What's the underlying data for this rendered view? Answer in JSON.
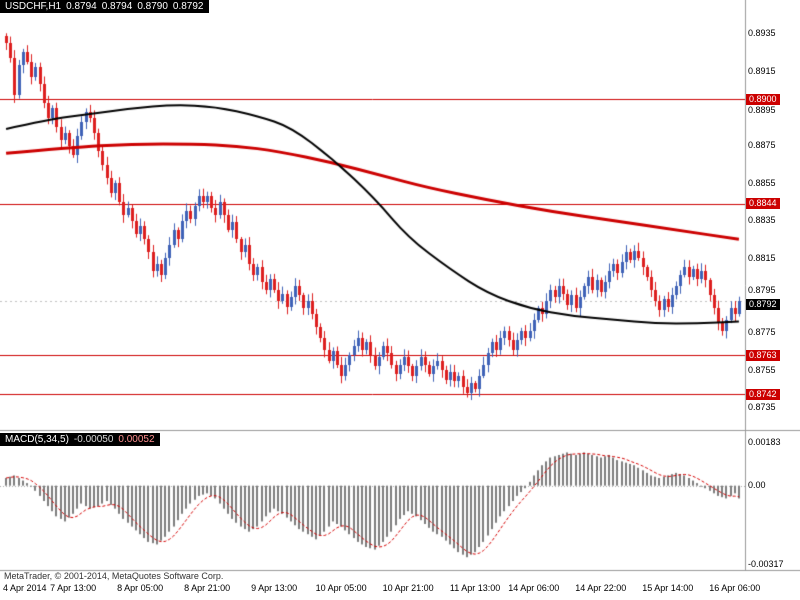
{
  "header": {
    "symbol": "USDCHF,H1",
    "open": "0.8794",
    "high": "0.8794",
    "low": "0.8790",
    "close": "0.8792"
  },
  "macd_header": {
    "name": "MACD(5,34,5)",
    "value": "-0.00050",
    "signal": "0.00052"
  },
  "footer": {
    "copyright": "MetaTrader, © 2001-2014, MetaQuotes Software Corp."
  },
  "chart_data": [
    {
      "type": "candlestick",
      "title": "USDCHF,H1",
      "ylim": [
        0.8723,
        0.8953
      ],
      "grid": false,
      "closes": [
        0.893,
        0.8922,
        0.8902,
        0.8918,
        0.8925,
        0.892,
        0.8912,
        0.8917,
        0.8908,
        0.8898,
        0.889,
        0.8895,
        0.8885,
        0.8878,
        0.8882,
        0.8875,
        0.887,
        0.888,
        0.8888,
        0.8893,
        0.889,
        0.8882,
        0.8872,
        0.8865,
        0.8858,
        0.885,
        0.8855,
        0.8845,
        0.8838,
        0.8842,
        0.8835,
        0.8828,
        0.8832,
        0.8825,
        0.8818,
        0.8808,
        0.8812,
        0.8806,
        0.8815,
        0.8822,
        0.883,
        0.8825,
        0.8835,
        0.884,
        0.8836,
        0.8843,
        0.8848,
        0.8845,
        0.8848,
        0.8842,
        0.8838,
        0.8845,
        0.8838,
        0.883,
        0.8834,
        0.8825,
        0.8818,
        0.8822,
        0.8812,
        0.8806,
        0.881,
        0.8802,
        0.8798,
        0.8804,
        0.8798,
        0.8792,
        0.8796,
        0.8789,
        0.8794,
        0.88,
        0.8795,
        0.8788,
        0.8792,
        0.8785,
        0.8778,
        0.8772,
        0.8766,
        0.876,
        0.8765,
        0.8758,
        0.8752,
        0.8758,
        0.8763,
        0.8768,
        0.8772,
        0.8766,
        0.877,
        0.8763,
        0.8757,
        0.8762,
        0.8768,
        0.8764,
        0.8758,
        0.8753,
        0.8758,
        0.8762,
        0.8757,
        0.8752,
        0.8757,
        0.8762,
        0.8758,
        0.8753,
        0.8757,
        0.876,
        0.8755,
        0.875,
        0.8754,
        0.8749,
        0.8752,
        0.8746,
        0.8743,
        0.8748,
        0.8745,
        0.8752,
        0.8758,
        0.8764,
        0.877,
        0.8766,
        0.8772,
        0.8776,
        0.8771,
        0.8766,
        0.8771,
        0.8776,
        0.8772,
        0.8776,
        0.8782,
        0.8788,
        0.8785,
        0.8792,
        0.8798,
        0.8794,
        0.88,
        0.8796,
        0.879,
        0.8795,
        0.8788,
        0.8794,
        0.88,
        0.8805,
        0.8798,
        0.8803,
        0.8797,
        0.8802,
        0.8808,
        0.8812,
        0.8807,
        0.8813,
        0.8818,
        0.8814,
        0.8819,
        0.8815,
        0.881,
        0.8805,
        0.8798,
        0.8792,
        0.8787,
        0.8793,
        0.8789,
        0.8795,
        0.88,
        0.8806,
        0.881,
        0.8805,
        0.8809,
        0.8804,
        0.8808,
        0.8803,
        0.8795,
        0.8788,
        0.878,
        0.8776,
        0.8782,
        0.8788,
        0.8785,
        0.8792
      ],
      "ma_black": {
        "name": "slow moving average",
        "points": [
          [
            0,
            0.8884
          ],
          [
            10,
            0.8889
          ],
          [
            20,
            0.8892
          ],
          [
            30,
            0.8895
          ],
          [
            40,
            0.8897
          ],
          [
            50,
            0.8896
          ],
          [
            60,
            0.8891
          ],
          [
            68,
            0.8885
          ],
          [
            78,
            0.8868
          ],
          [
            88,
            0.8847
          ],
          [
            96,
            0.8826
          ],
          [
            106,
            0.8809
          ],
          [
            115,
            0.8796
          ],
          [
            125,
            0.8788
          ],
          [
            135,
            0.8784
          ],
          [
            145,
            0.8782
          ],
          [
            155,
            0.878
          ],
          [
            165,
            0.878
          ],
          [
            175,
            0.8781
          ]
        ]
      },
      "ma_red": {
        "name": "long moving average",
        "points": [
          [
            0,
            0.8871
          ],
          [
            15,
            0.8874
          ],
          [
            30,
            0.8876
          ],
          [
            45,
            0.8876
          ],
          [
            55,
            0.8875
          ],
          [
            65,
            0.8872
          ],
          [
            78,
            0.8866
          ],
          [
            90,
            0.8859
          ],
          [
            100,
            0.8853
          ],
          [
            115,
            0.8846
          ],
          [
            130,
            0.884
          ],
          [
            145,
            0.8835
          ],
          [
            160,
            0.883
          ],
          [
            175,
            0.8825
          ]
        ]
      },
      "hlines": [
        0.89,
        0.8844,
        0.8763,
        0.8742
      ],
      "current_price": 0.8792,
      "y_axis": [
        {
          "label": "0.8935",
          "style": "plain"
        },
        {
          "label": "0.8915",
          "style": "plain"
        },
        {
          "label": "0.8900",
          "style": "red"
        },
        {
          "label": "0.8895",
          "style": "plain",
          "dy": 2
        },
        {
          "label": "0.8875",
          "style": "plain"
        },
        {
          "label": "0.8855",
          "style": "plain"
        },
        {
          "label": "0.8844",
          "style": "red"
        },
        {
          "label": "0.8835",
          "style": "plain"
        },
        {
          "label": "0.8815",
          "style": "plain"
        },
        {
          "label": "0.8795",
          "style": "plain",
          "dy": -5
        },
        {
          "label": "0.8792",
          "style": "dark",
          "dy": 3
        },
        {
          "label": "0.8775",
          "style": "plain"
        },
        {
          "label": "0.8763",
          "style": "red"
        },
        {
          "label": "0.8755",
          "style": "plain"
        },
        {
          "label": "0.8742",
          "style": "red"
        },
        {
          "label": "0.8735",
          "style": "plain"
        }
      ],
      "x_labels": [
        "4 Apr 2014",
        "7 Apr 13:00",
        "8 Apr 05:00",
        "8 Apr 21:00",
        "9 Apr 13:00",
        "10 Apr 05:00",
        "10 Apr 21:00",
        "11 Apr 13:00",
        "14 Apr 06:00",
        "14 Apr 22:00",
        "15 Apr 14:00",
        "16 Apr 06:00"
      ],
      "x_label_indices": [
        0,
        16,
        32,
        48,
        64,
        80,
        96,
        112,
        126,
        142,
        158,
        174
      ],
      "colors": {
        "bull": "#3f62b7",
        "bear": "#dd1f1f",
        "ma_black": "#000000",
        "ma_red": "#cc0000",
        "hline": "#cc0000",
        "bid_line": "#c0c0c0"
      }
    },
    {
      "type": "bar",
      "title": "MACD(5,34,5)",
      "ylim": [
        -0.0033,
        0.0021
      ],
      "signal_period": 5,
      "values": [
        0.0003,
        0.00035,
        0.0004,
        0.0003,
        0.0002,
        0.0001,
        0.0,
        -0.0002,
        -0.0004,
        -0.0006,
        -0.0008,
        -0.001,
        -0.0012,
        -0.0013,
        -0.0014,
        -0.00125,
        -0.0011,
        -0.0009,
        -0.0007,
        -0.0008,
        -0.0009,
        -0.00085,
        -0.0008,
        -0.0007,
        -0.0006,
        -0.00075,
        -0.0009,
        -0.0011,
        -0.0013,
        -0.00145,
        -0.0016,
        -0.00175,
        -0.0019,
        -0.00205,
        -0.0022,
        -0.00225,
        -0.0023,
        -0.00215,
        -0.002,
        -0.0018,
        -0.0016,
        -0.00135,
        -0.0011,
        -0.0009,
        -0.0007,
        -0.00055,
        -0.0004,
        -0.00035,
        -0.0003,
        -0.0004,
        -0.0005,
        -0.0007,
        -0.0009,
        -0.0011,
        -0.0013,
        -0.00145,
        -0.0016,
        -0.0017,
        -0.0018,
        -0.0017,
        -0.0016,
        -0.0014,
        -0.0012,
        -0.00105,
        -0.0009,
        -0.001,
        -0.0011,
        -0.00125,
        -0.0014,
        -0.00155,
        -0.0017,
        -0.0018,
        -0.0019,
        -0.002,
        -0.0021,
        -0.00195,
        -0.0018,
        -0.0016,
        -0.0014,
        -0.0015,
        -0.0016,
        -0.00175,
        -0.0019,
        -0.00205,
        -0.0022,
        -0.0023,
        -0.0024,
        -0.00245,
        -0.0025,
        -0.00235,
        -0.0022,
        -0.002,
        -0.0018,
        -0.00155,
        -0.0013,
        -0.00115,
        -0.001,
        -0.0011,
        -0.0012,
        -0.00135,
        -0.0015,
        -0.00165,
        -0.0018,
        -0.0019,
        -0.002,
        -0.00215,
        -0.0023,
        -0.00245,
        -0.0026,
        -0.0027,
        -0.0028,
        -0.0027,
        -0.0026,
        -0.0024,
        -0.0022,
        -0.00195,
        -0.0017,
        -0.00145,
        -0.0012,
        -0.001,
        -0.0008,
        -0.0006,
        -0.0004,
        -0.00025,
        -0.0001,
        0.00015,
        0.0004,
        0.0006,
        0.0008,
        0.00095,
        0.0011,
        0.00115,
        0.0012,
        0.00125,
        0.0013,
        0.00125,
        0.0012,
        0.00125,
        0.0013,
        0.00125,
        0.0012,
        0.00115,
        0.0011,
        0.00115,
        0.0012,
        0.0011,
        0.001,
        0.00095,
        0.0009,
        0.00085,
        0.0008,
        0.0007,
        0.0006,
        0.0005,
        0.0004,
        0.00035,
        0.0003,
        0.00035,
        0.0004,
        0.00045,
        0.0005,
        0.00045,
        0.0004,
        0.0003,
        0.0002,
        0.0001,
        0.0,
        -0.0001,
        -0.0002,
        -0.0003,
        -0.0004,
        -0.00045,
        -0.0005,
        -0.0004,
        -0.0003,
        -0.0005
      ],
      "y_axis": [
        {
          "label": "0.00183",
          "value": 0.00183,
          "dy": 4
        },
        {
          "label": "0.00",
          "value": 0,
          "dy": 0
        },
        {
          "label": "-0.00317",
          "value": -0.00317,
          "dy": -2
        }
      ],
      "colors": {
        "histogram": "#7d7d7d",
        "signal": "#d40000",
        "zero_line": "#aaaaaa"
      }
    }
  ]
}
